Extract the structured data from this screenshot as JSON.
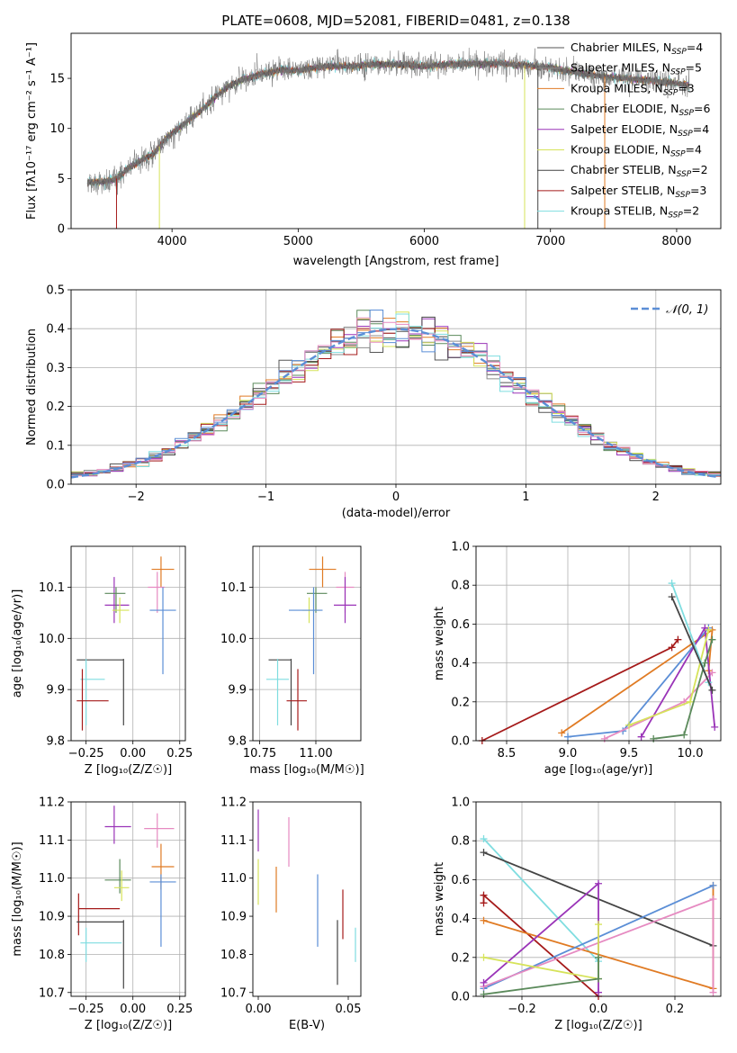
{
  "title": "PLATE=0608, MJD=52081, FIBERID=0481, z=0.138",
  "colors": {
    "CM": "#555555",
    "SM": "#8c8c8c",
    "KM": "#e07b24",
    "CE": "#5b8a5b",
    "SE": "#9a34b8",
    "KE": "#d6e35a",
    "CS": "#444444",
    "SS": "#a51a1a",
    "KS": "#7fdde0",
    "blue": "#5b8ed6",
    "pink": "#e68ac1",
    "gaussian": "#5b8ed6"
  },
  "chart_data": [
    {
      "id": "spectrum",
      "type": "line",
      "title": "PLATE=0608, MJD=52081, FIBERID=0481, z=0.138",
      "xlabel": "wavelength [Angstrom, rest frame]",
      "ylabel": "Flux [f",
      "ylabel_full": "Flux [fλ10⁻¹⁷ erg cm⁻² s⁻¹ A⁻¹]",
      "xlim": [
        3200,
        8350
      ],
      "ylim": [
        0,
        19.5
      ],
      "xticks": [
        4000,
        5000,
        6000,
        7000,
        8000
      ],
      "yticks": [
        0,
        5,
        10,
        15
      ],
      "legend_position": "right",
      "series": [
        {
          "name": "Chabrier MILES, N",
          "sub": "SSP",
          "suffix": "=4",
          "color_key": "CM"
        },
        {
          "name": "Salpeter MILES, N",
          "sub": "SSP",
          "suffix": "=5",
          "color_key": "SM"
        },
        {
          "name": "Kroupa MILES, N",
          "sub": "SSP",
          "suffix": "=3",
          "color_key": "KM"
        },
        {
          "name": "Chabrier ELODIE, N",
          "sub": "SSP",
          "suffix": "=6",
          "color_key": "CE"
        },
        {
          "name": "Salpeter ELODIE, N",
          "sub": "SSP",
          "suffix": "=4",
          "color_key": "SE"
        },
        {
          "name": "Kroupa ELODIE, N",
          "sub": "SSP",
          "suffix": "=4",
          "color_key": "KE"
        },
        {
          "name": "Chabrier STELIB, N",
          "sub": "SSP",
          "suffix": "=2",
          "color_key": "CS"
        },
        {
          "name": "Salpeter STELIB, N",
          "sub": "SSP",
          "suffix": "=3",
          "color_key": "SS"
        },
        {
          "name": "Kroupa STELIB, N",
          "sub": "SSP",
          "suffix": "=2",
          "color_key": "KS"
        }
      ],
      "continuum": [
        [
          3330,
          4.6
        ],
        [
          3450,
          4.7
        ],
        [
          3550,
          4.9
        ],
        [
          3650,
          6.0
        ],
        [
          3750,
          6.8
        ],
        [
          3850,
          7.4
        ],
        [
          3950,
          9.0
        ],
        [
          4050,
          10.0
        ],
        [
          4150,
          11.0
        ],
        [
          4250,
          12.0
        ],
        [
          4350,
          13.2
        ],
        [
          4450,
          14.2
        ],
        [
          4550,
          14.8
        ],
        [
          4700,
          15.4
        ],
        [
          4850,
          15.8
        ],
        [
          5000,
          15.8
        ],
        [
          5200,
          16.2
        ],
        [
          5400,
          16.2
        ],
        [
          5600,
          16.4
        ],
        [
          5800,
          16.4
        ],
        [
          6000,
          16.2
        ],
        [
          6200,
          16.4
        ],
        [
          6400,
          16.5
        ],
        [
          6600,
          16.5
        ],
        [
          6800,
          16.3
        ],
        [
          7000,
          16.1
        ],
        [
          7200,
          15.6
        ],
        [
          7400,
          15.2
        ],
        [
          7600,
          15.0
        ],
        [
          7800,
          14.8
        ],
        [
          8000,
          14.5
        ],
        [
          8100,
          14.3
        ]
      ]
    },
    {
      "id": "residuals",
      "type": "histogram",
      "xlabel": "(data-model)/error",
      "ylabel": "Normed distribution",
      "xlim": [
        -2.5,
        2.5
      ],
      "ylim": [
        0,
        0.5
      ],
      "xticks": [
        -2,
        -1,
        0,
        1,
        2
      ],
      "xtick_labels": [
        "−2",
        "−1",
        "0",
        "1",
        "2"
      ],
      "yticks": [
        0.0,
        0.1,
        0.2,
        0.3,
        0.4,
        0.5
      ],
      "ytick_labels": [
        "0.0",
        "0.1",
        "0.2",
        "0.3",
        "0.4",
        "0.5"
      ],
      "bin_width": 0.1,
      "legend_label": "𝒩(0, 1)",
      "legend_position": "top-right",
      "grid": true
    },
    {
      "id": "age_vs_Z",
      "type": "scatter",
      "xlabel": "Z [log₁₀(Z/Z☉)]",
      "ylabel": "age  [log₁₀(age/yr)]",
      "xlim": [
        -0.33,
        0.28
      ],
      "ylim": [
        9.8,
        10.18
      ],
      "xticks": [
        -0.25,
        0.0,
        0.25
      ],
      "xtick_labels": [
        "−0.25",
        "0.00",
        "0.25"
      ],
      "yticks": [
        9.8,
        9.9,
        10.0,
        10.1
      ],
      "ytick_labels": [
        "9.8",
        "9.9",
        "10.0",
        "10.1"
      ],
      "grid": true,
      "points": [
        {
          "c": "KM",
          "x": 0.15,
          "y": 10.135,
          "xe": [
            0.1,
            0.22
          ],
          "ye": [
            10.1,
            10.16
          ]
        },
        {
          "c": "pink",
          "x": 0.13,
          "y": 10.1,
          "xe": [
            0.08,
            0.17
          ],
          "ye": [
            10.05,
            10.13
          ]
        },
        {
          "c": "SE",
          "x": -0.1,
          "y": 10.065,
          "xe": [
            -0.15,
            -0.02
          ],
          "ye": [
            10.03,
            10.12
          ]
        },
        {
          "c": "CE",
          "x": -0.09,
          "y": 10.088,
          "xe": [
            -0.15,
            -0.04
          ],
          "ye": [
            10.05,
            10.1
          ]
        },
        {
          "c": "KE",
          "x": -0.07,
          "y": 10.055,
          "xe": [
            -0.11,
            -0.02
          ],
          "ye": [
            10.03,
            10.08
          ]
        },
        {
          "c": "blue",
          "x": 0.16,
          "y": 10.055,
          "xe": [
            0.09,
            0.23
          ],
          "ye": [
            9.93,
            10.1
          ]
        },
        {
          "c": "CS",
          "x": -0.05,
          "y": 9.958,
          "xe": [
            -0.3,
            -0.05
          ],
          "ye": [
            9.83,
            9.96
          ]
        },
        {
          "c": "KS",
          "x": -0.25,
          "y": 9.92,
          "xe": [
            -0.28,
            -0.15
          ],
          "ye": [
            9.83,
            9.96
          ]
        },
        {
          "c": "SS",
          "x": -0.27,
          "y": 9.878,
          "xe": [
            -0.3,
            -0.13
          ],
          "ye": [
            9.82,
            9.94
          ]
        }
      ]
    },
    {
      "id": "age_vs_mass",
      "type": "scatter",
      "xlabel": "mass [log₁₀(M/M☉)]",
      "ylabel": "",
      "xlim": [
        10.72,
        11.2
      ],
      "ylim": [
        9.8,
        10.18
      ],
      "xticks": [
        10.75,
        11.0
      ],
      "xtick_labels": [
        "10.75",
        "11.00"
      ],
      "yticks": [
        9.8,
        9.9,
        10.0,
        10.1
      ],
      "ytick_labels": [
        "9.8",
        "9.9",
        "10.0",
        "10.1"
      ],
      "grid": true,
      "points": [
        {
          "c": "KM",
          "x": 11.03,
          "y": 10.135,
          "xe": [
            10.97,
            11.09
          ],
          "ye": [
            10.1,
            10.16
          ]
        },
        {
          "c": "pink",
          "x": 11.13,
          "y": 10.1,
          "xe": [
            11.09,
            11.17
          ],
          "ye": [
            10.05,
            10.13
          ]
        },
        {
          "c": "SE",
          "x": 11.13,
          "y": 10.065,
          "xe": [
            11.08,
            11.18
          ],
          "ye": [
            10.03,
            10.12
          ]
        },
        {
          "c": "CE",
          "x": 11.0,
          "y": 10.088,
          "xe": [
            10.96,
            11.05
          ],
          "ye": [
            10.05,
            10.1
          ]
        },
        {
          "c": "KE",
          "x": 10.97,
          "y": 10.055,
          "xe": [
            10.94,
            11.02
          ],
          "ye": [
            10.03,
            10.08
          ]
        },
        {
          "c": "blue",
          "x": 10.99,
          "y": 10.055,
          "xe": [
            10.88,
            11.03
          ],
          "ye": [
            9.93,
            10.1
          ]
        },
        {
          "c": "CS",
          "x": 10.89,
          "y": 9.958,
          "xe": [
            10.79,
            10.89
          ],
          "ye": [
            9.83,
            9.96
          ]
        },
        {
          "c": "KS",
          "x": 10.83,
          "y": 9.92,
          "xe": [
            10.78,
            10.88
          ],
          "ye": [
            9.83,
            9.96
          ]
        },
        {
          "c": "SS",
          "x": 10.92,
          "y": 9.878,
          "xe": [
            10.87,
            10.96
          ],
          "ye": [
            9.82,
            9.94
          ]
        }
      ]
    },
    {
      "id": "weight_vs_age",
      "type": "line",
      "xlabel": "age  [log₁₀(age/yr)]",
      "ylabel": "mass weight",
      "xlim": [
        8.25,
        10.25
      ],
      "ylim": [
        0,
        1
      ],
      "xticks": [
        8.5,
        9.0,
        9.5,
        10.0
      ],
      "xtick_labels": [
        "8.5",
        "9.0",
        "9.5",
        "10.0"
      ],
      "yticks": [
        0.0,
        0.2,
        0.4,
        0.6,
        0.8,
        1.0
      ],
      "ytick_labels": [
        "0.0",
        "0.2",
        "0.4",
        "0.6",
        "0.8",
        "1.0"
      ],
      "grid": true,
      "series": [
        {
          "c": "SS",
          "x": [
            8.3,
            9.85,
            9.9
          ],
          "y": [
            0.0,
            0.48,
            0.52
          ]
        },
        {
          "c": "KM",
          "x": [
            8.95,
            10.18,
            10.15
          ],
          "y": [
            0.04,
            0.57,
            0.36
          ]
        },
        {
          "c": "blue",
          "x": [
            9.0,
            9.45,
            10.15
          ],
          "y": [
            0.02,
            0.05,
            0.58
          ]
        },
        {
          "c": "pink",
          "x": [
            9.3,
            9.95,
            10.18
          ],
          "y": [
            0.01,
            0.2,
            0.35
          ]
        },
        {
          "c": "SE",
          "x": [
            9.6,
            10.12,
            10.2
          ],
          "y": [
            0.02,
            0.58,
            0.07
          ]
        },
        {
          "c": "KE",
          "x": [
            9.5,
            10.0,
            10.15
          ],
          "y": [
            0.08,
            0.2,
            0.57
          ]
        },
        {
          "c": "CE",
          "x": [
            9.7,
            9.95,
            10.12,
            10.18
          ],
          "y": [
            0.01,
            0.03,
            0.4,
            0.52
          ]
        },
        {
          "c": "KS",
          "x": [
            9.85,
            10.15
          ],
          "y": [
            0.81,
            0.3
          ]
        },
        {
          "c": "CS",
          "x": [
            9.85,
            10.18
          ],
          "y": [
            0.74,
            0.26
          ]
        }
      ]
    },
    {
      "id": "mass_vs_Z",
      "type": "scatter",
      "xlabel": "Z [log₁₀(Z/Z☉)]",
      "ylabel": "mass [log₁₀(M/M☉)]",
      "xlim": [
        -0.33,
        0.28
      ],
      "ylim": [
        10.69,
        11.2
      ],
      "xticks": [
        -0.25,
        0.0,
        0.25
      ],
      "xtick_labels": [
        "−0.25",
        "0.00",
        "0.25"
      ],
      "yticks": [
        10.7,
        10.8,
        10.9,
        11.0,
        11.1,
        11.2
      ],
      "ytick_labels": [
        "10.7",
        "10.8",
        "10.9",
        "11.0",
        "11.1",
        "11.2"
      ],
      "grid": true,
      "points": [
        {
          "c": "SE",
          "x": -0.1,
          "y": 11.135,
          "xe": [
            -0.15,
            -0.01
          ],
          "ye": [
            11.09,
            11.19
          ]
        },
        {
          "c": "pink",
          "x": 0.13,
          "y": 11.13,
          "xe": [
            0.06,
            0.22
          ],
          "ye": [
            11.08,
            11.17
          ]
        },
        {
          "c": "KM",
          "x": 0.15,
          "y": 11.03,
          "xe": [
            0.1,
            0.22
          ],
          "ye": [
            10.97,
            11.09
          ]
        },
        {
          "c": "CE",
          "x": -0.07,
          "y": 10.995,
          "xe": [
            -0.15,
            -0.01
          ],
          "ye": [
            10.96,
            11.05
          ]
        },
        {
          "c": "KE",
          "x": -0.06,
          "y": 10.975,
          "xe": [
            -0.1,
            -0.02
          ],
          "ye": [
            10.94,
            11.02
          ]
        },
        {
          "c": "blue",
          "x": 0.15,
          "y": 10.99,
          "xe": [
            0.09,
            0.23
          ],
          "ye": [
            10.82,
            11.01
          ]
        },
        {
          "c": "SS",
          "x": -0.29,
          "y": 10.92,
          "xe": [
            -0.29,
            -0.07
          ],
          "ye": [
            10.85,
            10.96
          ]
        },
        {
          "c": "CS",
          "x": -0.05,
          "y": 10.885,
          "xe": [
            -0.3,
            -0.05
          ],
          "ye": [
            10.71,
            10.89
          ]
        },
        {
          "c": "KS",
          "x": -0.25,
          "y": 10.83,
          "xe": [
            -0.28,
            -0.06
          ],
          "ye": [
            10.78,
            10.87
          ]
        }
      ]
    },
    {
      "id": "mass_vs_ebv",
      "type": "scatter",
      "xlabel": "E(B-V)",
      "ylabel": "",
      "xlim": [
        -0.003,
        0.057
      ],
      "ylim": [
        10.69,
        11.2
      ],
      "xticks": [
        0.0,
        0.05
      ],
      "xtick_labels": [
        "0.00",
        "0.05"
      ],
      "yticks": [
        10.7,
        10.8,
        10.9,
        11.0,
        11.1,
        11.2
      ],
      "ytick_labels": [
        "10.7",
        "10.8",
        "10.9",
        "11.0",
        "11.1",
        "11.2"
      ],
      "grid": false,
      "points": [
        {
          "c": "SE",
          "x": 0.0,
          "y": 11.135,
          "xe": [
            0.0,
            0.0
          ],
          "ye": [
            11.07,
            11.18
          ]
        },
        {
          "c": "KE",
          "x": 0.0,
          "y": 10.99,
          "xe": [
            0.0,
            0.0
          ],
          "ye": [
            10.93,
            11.05
          ]
        },
        {
          "c": "pink",
          "x": 0.017,
          "y": 11.1,
          "xe": [
            0.017,
            0.017
          ],
          "ye": [
            11.03,
            11.16
          ]
        },
        {
          "c": "KM",
          "x": 0.01,
          "y": 10.97,
          "xe": [
            0.01,
            0.01
          ],
          "ye": [
            10.91,
            11.03
          ]
        },
        {
          "c": "blue",
          "x": 0.033,
          "y": 10.91,
          "xe": [
            0.033,
            0.033
          ],
          "ye": [
            10.82,
            11.01
          ]
        },
        {
          "c": "SS",
          "x": 0.047,
          "y": 10.91,
          "xe": [
            0.047,
            0.047
          ],
          "ye": [
            10.84,
            10.97
          ]
        },
        {
          "c": "CS",
          "x": 0.044,
          "y": 10.8,
          "xe": [
            0.044,
            0.044
          ],
          "ye": [
            10.72,
            10.89
          ]
        },
        {
          "c": "KS",
          "x": 0.054,
          "y": 10.82,
          "xe": [
            0.054,
            0.054
          ],
          "ye": [
            10.78,
            10.87
          ]
        }
      ]
    },
    {
      "id": "weight_vs_Z",
      "type": "line",
      "xlabel": "Z [log₁₀(Z/Z☉)]",
      "ylabel": "mass weight",
      "xlim": [
        -0.32,
        0.32
      ],
      "ylim": [
        0,
        1
      ],
      "xticks": [
        -0.2,
        0.0,
        0.2
      ],
      "xtick_labels": [
        "−0.2",
        "0.0",
        "0.2"
      ],
      "yticks": [
        0.0,
        0.2,
        0.4,
        0.6,
        0.8,
        1.0
      ],
      "ytick_labels": [
        "0.0",
        "0.2",
        "0.4",
        "0.6",
        "0.8",
        "1.0"
      ],
      "grid": true,
      "series": [
        {
          "c": "KS",
          "x": [
            -0.3,
            0.0
          ],
          "y": [
            0.81,
            0.18
          ]
        },
        {
          "c": "CS",
          "x": [
            -0.3,
            0.3
          ],
          "y": [
            0.74,
            0.26
          ]
        },
        {
          "c": "SS",
          "x": [
            -0.3,
            -0.3,
            0.0
          ],
          "y": [
            0.48,
            0.52,
            0.0
          ]
        },
        {
          "c": "KM",
          "x": [
            -0.3,
            0.3,
            0.3
          ],
          "y": [
            0.39,
            0.04,
            0.57
          ]
        },
        {
          "c": "blue",
          "x": [
            -0.3,
            0.3
          ],
          "y": [
            0.04,
            0.57
          ]
        },
        {
          "c": "pink",
          "x": [
            -0.3,
            0.3,
            0.3
          ],
          "y": [
            0.05,
            0.5,
            0.02
          ]
        },
        {
          "c": "SE",
          "x": [
            -0.3,
            0.0,
            0.0
          ],
          "y": [
            0.07,
            0.58,
            0.02
          ]
        },
        {
          "c": "KE",
          "x": [
            -0.3,
            0.0,
            0.0
          ],
          "y": [
            0.2,
            0.09,
            0.37
          ]
        },
        {
          "c": "CE",
          "x": [
            -0.3,
            0.0,
            0.0
          ],
          "y": [
            0.01,
            0.09,
            0.2
          ]
        }
      ]
    }
  ]
}
